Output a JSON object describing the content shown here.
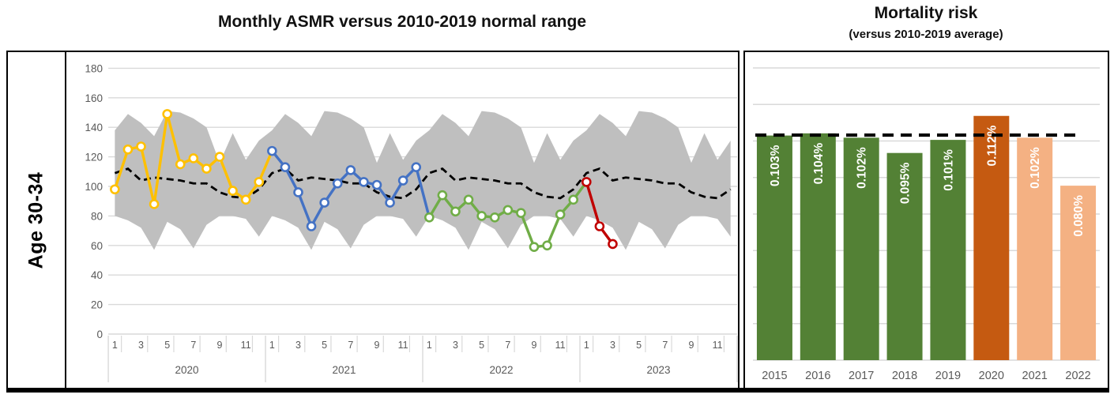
{
  "page": {
    "left_chart_title": "Monthly ASMR versus 2010-2019 normal range",
    "right_chart_title": "Mortality risk",
    "right_chart_subtitle": "(versus 2010-2019 average)",
    "row_label": "Age 30-34"
  },
  "colors": {
    "grid": "#D9D9D9",
    "axis_text": "#595959",
    "normal_range_band": "#BFBFBF",
    "average_dashed": "#000000",
    "series_2020": "#FFC000",
    "series_2021": "#4472C4",
    "series_2022": "#70AD47",
    "series_2023": "#C00000",
    "bar_green": "#538135",
    "bar_dark_orange": "#C55A11",
    "bar_light_orange": "#F4B183",
    "bar_label_text": "#FFFFFF"
  },
  "chart_data": [
    {
      "type": "line",
      "title": "Monthly ASMR versus 2010-2019 normal range",
      "y_axis": {
        "min": 0,
        "max": 180,
        "tick_step": 20,
        "tick_labels": [
          "180",
          "160",
          "140",
          "120",
          "100",
          "80",
          "60",
          "40",
          "20",
          "0"
        ]
      },
      "x_axis": {
        "month_labels": [
          "1",
          "3",
          "5",
          "7",
          "9",
          "11"
        ],
        "year_labels": [
          "2020",
          "2021",
          "2022",
          "2023"
        ],
        "months_per_year": 12
      },
      "grid_on": true,
      "normal_range_band": {
        "upper_monthly": [
          138,
          149,
          143,
          134,
          151,
          150,
          146,
          140,
          116,
          136,
          118,
          131
        ],
        "lower_monthly": [
          80,
          77,
          72,
          57,
          76,
          71,
          58,
          74,
          80,
          80,
          78,
          66
        ]
      },
      "average_line_monthly": [
        109,
        112,
        104,
        106,
        105,
        104,
        102,
        102,
        96,
        93,
        92,
        98
      ],
      "series": [
        {
          "name": "2020",
          "values": [
            98,
            125,
            127,
            88,
            149,
            115,
            119,
            112,
            120,
            97,
            91,
            103
          ]
        },
        {
          "name": "2021",
          "values": [
            124,
            113,
            96,
            73,
            89,
            102,
            111,
            103,
            101,
            89,
            104,
            113
          ]
        },
        {
          "name": "2022",
          "values": [
            79,
            94,
            83,
            91,
            80,
            79,
            84,
            82,
            59,
            60,
            81,
            91
          ]
        },
        {
          "name": "2023",
          "values": [
            103,
            73,
            61
          ]
        }
      ]
    },
    {
      "type": "bar",
      "title": "Mortality risk",
      "subtitle": "(versus 2010-2019 average)",
      "categories": [
        "2015",
        "2016",
        "2017",
        "2018",
        "2019",
        "2020",
        "2021",
        "2022"
      ],
      "values_pct": [
        0.103,
        0.104,
        0.102,
        0.095,
        0.101,
        0.112,
        0.102,
        0.08
      ],
      "value_labels": [
        "0.103%",
        "0.104%",
        "0.102%",
        "0.095%",
        "0.101%",
        "0.112%",
        "0.102%",
        "0.080%"
      ],
      "bar_color_keys": [
        "bar_green",
        "bar_green",
        "bar_green",
        "bar_green",
        "bar_green",
        "bar_dark_orange",
        "bar_light_orange",
        "bar_light_orange"
      ],
      "average_line_pct": 0.1032,
      "ylim_pct": [
        0,
        0.134
      ],
      "gridline_intervals": 8,
      "grid_on": true,
      "legend": "none"
    }
  ]
}
